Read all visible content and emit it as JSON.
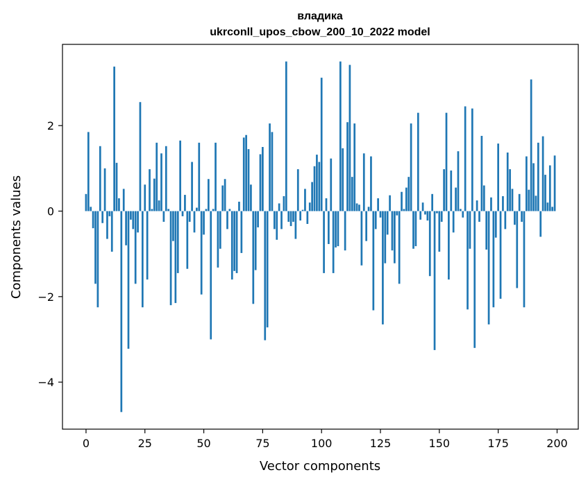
{
  "chart_data": {
    "type": "bar",
    "title": "владика",
    "subtitle": "ukrconll_upos_cbow_200_10_2022 model",
    "xlabel": "Vector components",
    "ylabel": "Components values",
    "xlim": [
      -10,
      209
    ],
    "ylim": [
      -5.1,
      3.9
    ],
    "xticks": [
      0,
      25,
      50,
      75,
      100,
      125,
      150,
      175,
      200
    ],
    "yticks": [
      -4,
      -2,
      0,
      2
    ],
    "ytick_labels": [
      "−4",
      "−2",
      "0",
      "2"
    ],
    "bar_color": "#1f77b4",
    "grid": false,
    "x": [
      0,
      1,
      2,
      3,
      4,
      5,
      6,
      7,
      8,
      9,
      10,
      11,
      12,
      13,
      14,
      15,
      16,
      17,
      18,
      19,
      20,
      21,
      22,
      23,
      24,
      25,
      26,
      27,
      28,
      29,
      30,
      31,
      32,
      33,
      34,
      35,
      36,
      37,
      38,
      39,
      40,
      41,
      42,
      43,
      44,
      45,
      46,
      47,
      48,
      49,
      50,
      51,
      52,
      53,
      54,
      55,
      56,
      57,
      58,
      59,
      60,
      61,
      62,
      63,
      64,
      65,
      66,
      67,
      68,
      69,
      70,
      71,
      72,
      73,
      74,
      75,
      76,
      77,
      78,
      79,
      80,
      81,
      82,
      83,
      84,
      85,
      86,
      87,
      88,
      89,
      90,
      91,
      92,
      93,
      94,
      95,
      96,
      97,
      98,
      99,
      100,
      101,
      102,
      103,
      104,
      105,
      106,
      107,
      108,
      109,
      110,
      111,
      112,
      113,
      114,
      115,
      116,
      117,
      118,
      119,
      120,
      121,
      122,
      123,
      124,
      125,
      126,
      127,
      128,
      129,
      130,
      131,
      132,
      133,
      134,
      135,
      136,
      137,
      138,
      139,
      140,
      141,
      142,
      143,
      144,
      145,
      146,
      147,
      148,
      149,
      150,
      151,
      152,
      153,
      154,
      155,
      156,
      157,
      158,
      159,
      160,
      161,
      162,
      163,
      164,
      165,
      166,
      167,
      168,
      169,
      170,
      171,
      172,
      173,
      174,
      175,
      176,
      177,
      178,
      179,
      180,
      181,
      182,
      183,
      184,
      185,
      186,
      187,
      188,
      189,
      190,
      191,
      192,
      193,
      194,
      195,
      196,
      197,
      198,
      199
    ],
    "values": [
      0.4,
      1.85,
      0.1,
      -0.4,
      -1.7,
      -2.25,
      1.52,
      -0.28,
      1.0,
      -0.65,
      -0.12,
      -0.95,
      3.38,
      1.13,
      0.3,
      -4.7,
      0.52,
      -0.8,
      -3.22,
      -0.2,
      -0.42,
      -1.7,
      -0.5,
      2.55,
      -2.25,
      0.62,
      -1.6,
      0.98,
      0.05,
      0.76,
      1.6,
      0.25,
      1.35,
      -0.25,
      1.52,
      0.05,
      -2.2,
      -0.7,
      -2.15,
      -1.45,
      1.65,
      -0.12,
      0.38,
      -1.35,
      -0.25,
      1.15,
      -0.5,
      0.08,
      1.6,
      -1.95,
      -0.55,
      0.05,
      0.75,
      -3.0,
      0.05,
      1.6,
      -1.32,
      -0.88,
      0.6,
      0.75,
      -0.42,
      0.05,
      -1.6,
      -1.4,
      -1.45,
      0.22,
      -0.98,
      1.72,
      1.78,
      1.45,
      0.62,
      -2.17,
      -1.38,
      -0.38,
      1.33,
      1.5,
      -3.02,
      -2.72,
      2.05,
      1.85,
      -0.42,
      -0.67,
      0.18,
      -0.42,
      0.35,
      3.5,
      -0.25,
      -0.35,
      -0.25,
      -0.65,
      0.98,
      -0.22,
      0.03,
      0.52,
      -0.3,
      0.2,
      0.68,
      1.05,
      1.32,
      1.15,
      3.12,
      -1.45,
      0.3,
      -0.77,
      1.23,
      -1.45,
      -0.85,
      -0.82,
      3.5,
      1.47,
      -0.92,
      2.08,
      3.42,
      0.8,
      2.05,
      0.18,
      0.15,
      -1.27,
      1.35,
      -0.7,
      0.1,
      1.28,
      -2.32,
      -0.42,
      0.3,
      -0.15,
      -2.65,
      -1.22,
      -0.55,
      0.37,
      -0.92,
      -1.22,
      -0.1,
      -1.7,
      0.45,
      0.05,
      0.55,
      0.8,
      2.05,
      -0.88,
      -0.82,
      2.3,
      -0.2,
      0.2,
      -0.08,
      -0.22,
      -1.52,
      0.4,
      -3.25,
      -0.05,
      -0.95,
      -0.25,
      0.98,
      2.3,
      -1.6,
      0.95,
      -0.5,
      0.55,
      1.4,
      0.05,
      -0.15,
      2.45,
      -2.3,
      -0.88,
      2.4,
      -3.2,
      0.25,
      -0.25,
      1.76,
      0.6,
      -0.9,
      -2.65,
      0.32,
      -2.25,
      -0.62,
      1.58,
      -2.05,
      0.35,
      -0.42,
      1.37,
      0.98,
      0.52,
      -0.32,
      -1.8,
      0.4,
      -0.25,
      -2.25,
      1.28,
      0.5,
      3.08,
      1.12,
      0.36,
      1.6,
      -0.6,
      1.75,
      0.85,
      0.2,
      1.07,
      0.1,
      1.3
    ]
  }
}
